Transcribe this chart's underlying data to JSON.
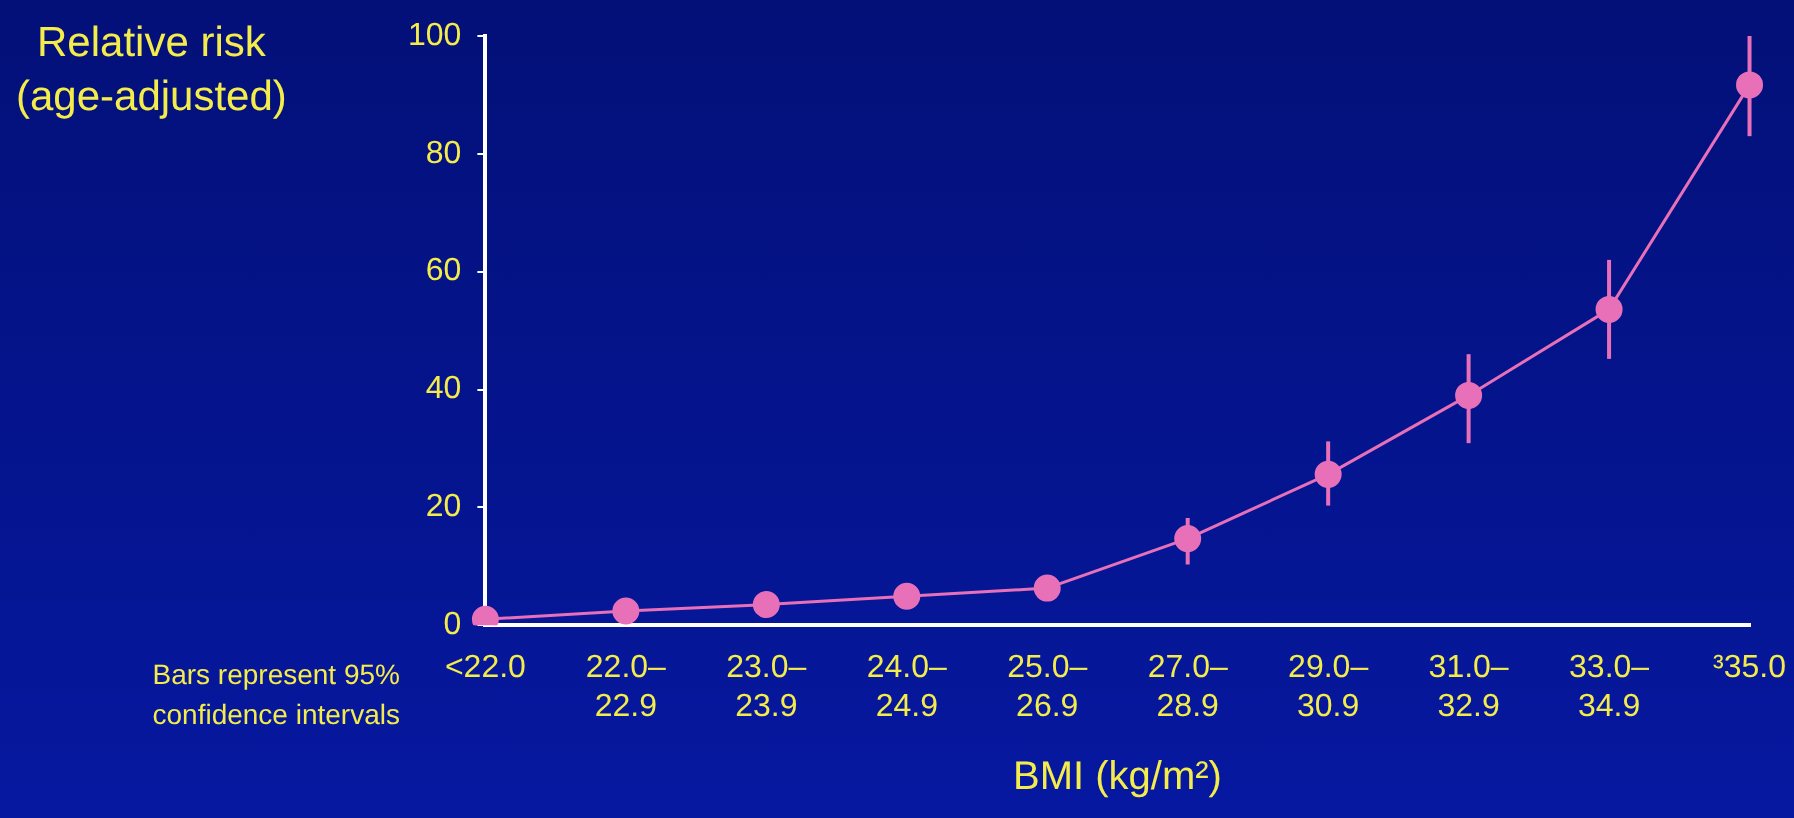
{
  "chart_data": {
    "type": "line",
    "ylabel": "Relative risk\n(age-adjusted)",
    "xlabel": "BMI (kg/m²)",
    "annotations": [
      "Bars represent 95%\nconfidence intervals"
    ],
    "categories": [
      "<22.0",
      "22.0–\n22.9",
      "23.0–\n23.9",
      "24.0–\n24.9",
      "25.0–\n26.9",
      "27.0–\n28.9",
      "29.0–\n30.9",
      "31.0–\n32.9",
      "33.0–\n34.9",
      "³35.0"
    ],
    "series": [
      {
        "color": "#e870b8",
        "values": [
          1,
          2.4,
          3.5,
          4.9,
          6.3,
          14.7,
          25.6,
          39,
          53.6,
          91.7
        ],
        "errors": [
          null,
          null,
          null,
          null,
          null,
          [
            10.3,
            18.2
          ],
          [
            20.3,
            31.2
          ],
          [
            30.9,
            46
          ],
          [
            45.2,
            62
          ],
          [
            83,
            100
          ]
        ]
      }
    ],
    "ylim": [
      0,
      100
    ],
    "yticks": [
      0,
      20,
      40,
      60,
      80,
      100
    ],
    "grid": false,
    "legend": false,
    "marker": "circle",
    "line_style": "solid"
  }
}
